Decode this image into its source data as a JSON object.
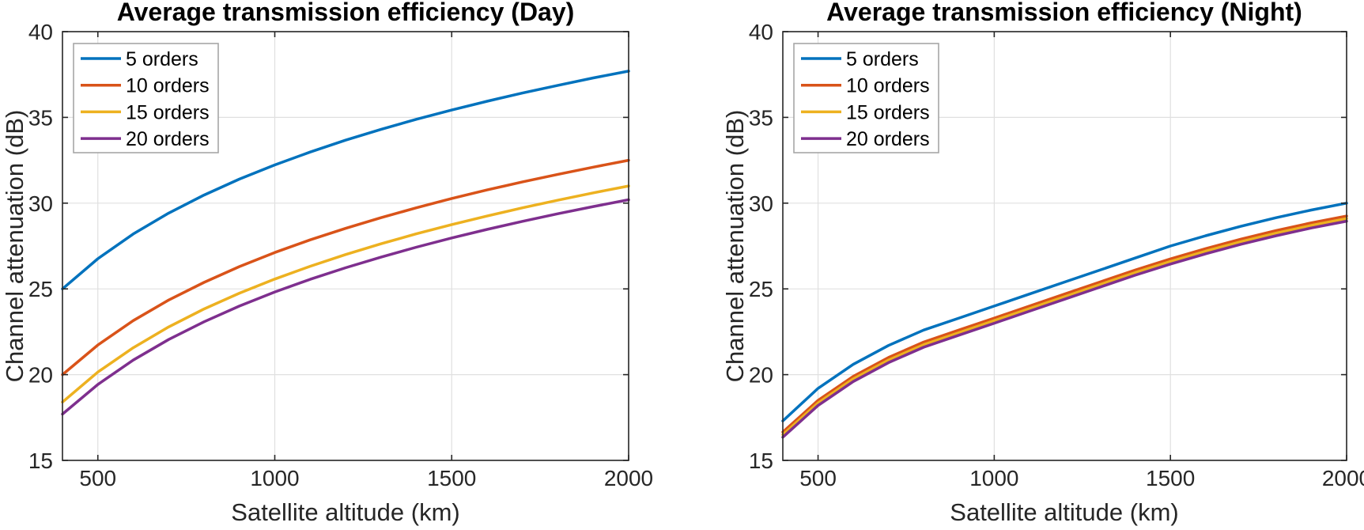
{
  "colors": {
    "background": "#ffffff",
    "axis": "#262626",
    "grid": "#e0e0e0",
    "tick_text": "#262626",
    "legend_border": "#a6a6a6",
    "legend_text": "#000000",
    "series_blue": "#0072bd",
    "series_orange": "#d95319",
    "series_yellow": "#edb120",
    "series_purple": "#7e2f8e"
  },
  "chart_data": [
    {
      "type": "line",
      "title": "Average transmission efficiency (Day)",
      "xlabel": "Satellite altitude (km)",
      "ylabel": "Channel attenuation (dB)",
      "xlim": [
        400,
        2000
      ],
      "ylim": [
        15,
        40
      ],
      "xticks": [
        500,
        1000,
        1500,
        2000
      ],
      "yticks": [
        15,
        20,
        25,
        30,
        35,
        40
      ],
      "grid": true,
      "legend_position": "northwest",
      "x": [
        400,
        500,
        600,
        700,
        800,
        900,
        1000,
        1100,
        1200,
        1300,
        1400,
        1500,
        1600,
        1700,
        1800,
        1900,
        2000
      ],
      "series": [
        {
          "name": "5 orders",
          "color": "#0072bd",
          "values": [
            25.0,
            26.76,
            28.2,
            29.42,
            30.47,
            31.4,
            32.23,
            32.98,
            33.67,
            34.3,
            34.89,
            35.43,
            35.94,
            36.42,
            36.87,
            37.3,
            37.7
          ]
        },
        {
          "name": "10 orders",
          "color": "#d95319",
          "values": [
            20.0,
            21.73,
            23.15,
            24.35,
            25.38,
            26.3,
            27.12,
            27.86,
            28.53,
            29.15,
            29.73,
            30.27,
            30.77,
            31.24,
            31.68,
            32.1,
            32.5
          ]
        },
        {
          "name": "15 orders",
          "color": "#edb120",
          "values": [
            18.4,
            20.15,
            21.57,
            22.78,
            23.83,
            24.75,
            25.57,
            26.32,
            27.0,
            27.63,
            28.21,
            28.75,
            29.25,
            29.73,
            30.17,
            30.6,
            31.0
          ]
        },
        {
          "name": "20 orders",
          "color": "#7e2f8e",
          "values": [
            17.7,
            19.43,
            20.85,
            22.05,
            23.08,
            24.0,
            24.82,
            25.56,
            26.23,
            26.85,
            27.43,
            27.97,
            28.47,
            28.94,
            29.38,
            29.8,
            30.2
          ]
        }
      ]
    },
    {
      "type": "line",
      "title": "Average transmission efficiency (Night)",
      "xlabel": "Satellite altitude (km)",
      "ylabel": "Channel attenuation (dB)",
      "xlim": [
        400,
        2000
      ],
      "ylim": [
        15,
        40
      ],
      "xticks": [
        500,
        1000,
        1500,
        2000
      ],
      "yticks": [
        15,
        20,
        25,
        30,
        35,
        40
      ],
      "grid": true,
      "legend_position": "northwest",
      "x": [
        400,
        500,
        600,
        700,
        800,
        900,
        1000,
        1100,
        1200,
        1300,
        1400,
        1500,
        1600,
        1700,
        1800,
        1900,
        2000
      ],
      "series": [
        {
          "name": "5 orders",
          "color": "#0072bd",
          "values": [
            17.3,
            19.2,
            20.6,
            21.7,
            22.6,
            23.3,
            24.0,
            24.7,
            25.4,
            26.1,
            26.8,
            27.5,
            28.1,
            28.65,
            29.15,
            29.6,
            30.0
          ]
        },
        {
          "name": "10 orders",
          "color": "#d95319",
          "values": [
            16.65,
            18.5,
            19.9,
            21.0,
            21.9,
            22.6,
            23.3,
            24.0,
            24.7,
            25.4,
            26.1,
            26.75,
            27.35,
            27.9,
            28.4,
            28.85,
            29.25
          ]
        },
        {
          "name": "15 orders",
          "color": "#edb120",
          "values": [
            16.5,
            18.35,
            19.75,
            20.85,
            21.75,
            22.45,
            23.15,
            23.85,
            24.55,
            25.25,
            25.95,
            26.6,
            27.2,
            27.75,
            28.25,
            28.7,
            29.1
          ]
        },
        {
          "name": "20 orders",
          "color": "#7e2f8e",
          "values": [
            16.35,
            18.2,
            19.6,
            20.7,
            21.6,
            22.3,
            23.0,
            23.7,
            24.4,
            25.1,
            25.8,
            26.45,
            27.05,
            27.6,
            28.1,
            28.55,
            28.95
          ]
        }
      ]
    }
  ]
}
